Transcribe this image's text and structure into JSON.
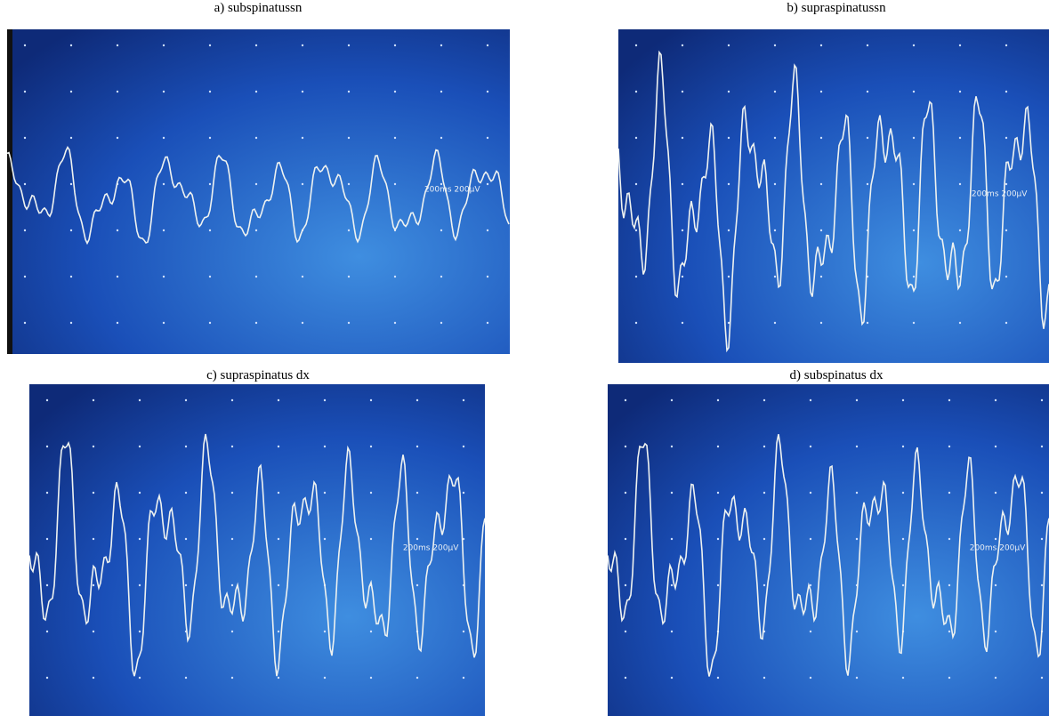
{
  "panels": [
    {
      "label": "a) subspinatussn",
      "scale": "200ms 200µV"
    },
    {
      "label": "b) supraspinatussn",
      "scale": "200ms 200µV"
    },
    {
      "label": "c) supraspinatus dx",
      "scale": "200ms 200µV"
    },
    {
      "label": "d) subspinatus dx",
      "scale": "200ms 200µV"
    }
  ]
}
